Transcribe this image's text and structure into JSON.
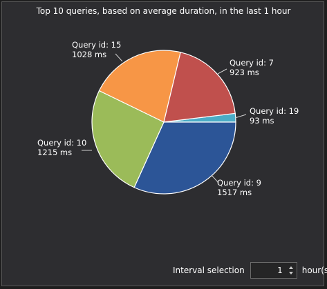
{
  "chart_data": {
    "type": "pie",
    "title": "Top 10 queries, based on average duration, in the last 1 hour",
    "slices": [
      {
        "label": "Query id: 19",
        "value": 93,
        "value_text": "93 ms",
        "color": "#4bacc6"
      },
      {
        "label": "Query id: 9",
        "value": 1517,
        "value_text": "1517 ms",
        "color": "#2c5597"
      },
      {
        "label": "Query id: 10",
        "value": 1215,
        "value_text": "1215 ms",
        "color": "#9bbb59"
      },
      {
        "label": "Query id: 15",
        "value": 1028,
        "value_text": "1028 ms",
        "color": "#f79646"
      },
      {
        "label": "Query id: 7",
        "value": 923,
        "value_text": "923 ms",
        "color": "#c0504d"
      }
    ]
  },
  "interval": {
    "label": "Interval selection",
    "value": "1",
    "unit": "hour(s)"
  }
}
